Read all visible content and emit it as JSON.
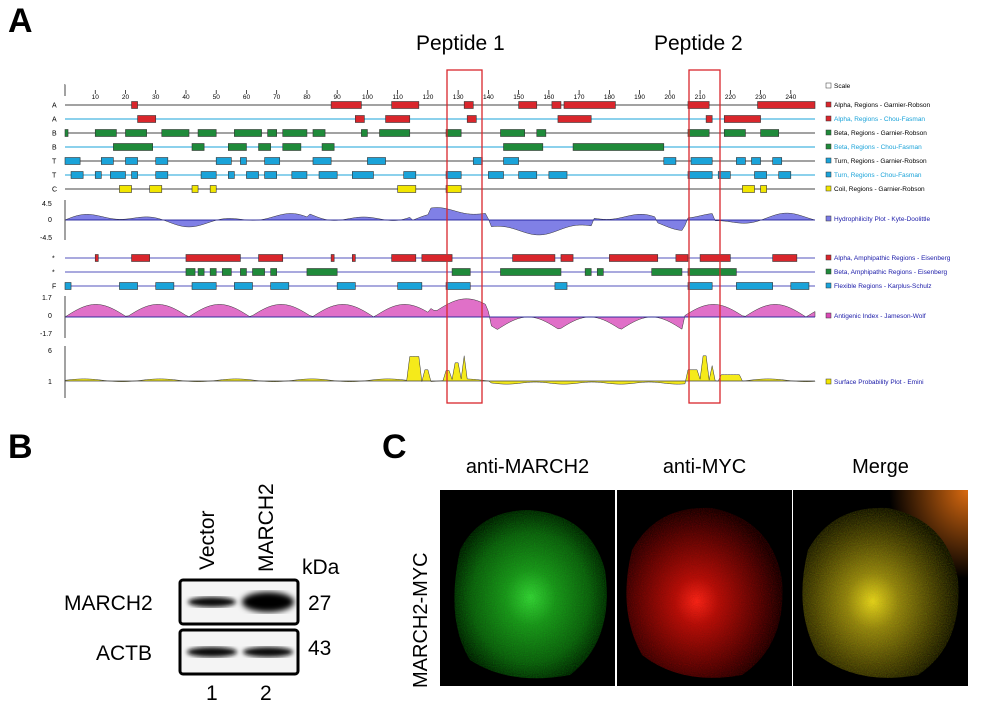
{
  "panels": {
    "a": "A",
    "b": "B",
    "c": "C"
  },
  "peptides": [
    "Peptide 1",
    "Peptide 2"
  ],
  "protean": {
    "scale_ticks": [
      10,
      20,
      30,
      40,
      50,
      60,
      70,
      80,
      90,
      100,
      110,
      120,
      130,
      140,
      150,
      160,
      170,
      180,
      190,
      200,
      210,
      220,
      230,
      240
    ],
    "row_letters": [
      "A",
      "A",
      "B",
      "B",
      "T",
      "T",
      "C"
    ],
    "amph_letters": [
      "*",
      "*",
      "F"
    ],
    "axis_labels": {
      "h_top": "4.5",
      "h_mid": "0",
      "h_bot": "-4.5",
      "a_top": "1.7",
      "a_mid": "0",
      "a_bot": "-1.7",
      "s_top": "6",
      "s_mid": "1"
    },
    "legend": [
      {
        "text": "Scale",
        "color": "#ffffff",
        "text_color": "#000000"
      },
      {
        "text": "Alpha, Regions - Garnier-Robson",
        "color": "#d9262c",
        "text_color": "#000000"
      },
      {
        "text": "Alpha, Regions - Chou-Fasman",
        "color": "#d9262c",
        "text_color": "#1aa3d9"
      },
      {
        "text": "Beta, Regions - Garnier-Robson",
        "color": "#1f8a3a",
        "text_color": "#000000"
      },
      {
        "text": "Beta, Regions - Chou-Fasman",
        "color": "#1f8a3a",
        "text_color": "#1aa3d9"
      },
      {
        "text": "Turn, Regions - Garnier-Robson",
        "color": "#1aa3d9",
        "text_color": "#000000"
      },
      {
        "text": "Turn, Regions - Chou-Fasman",
        "color": "#1aa3d9",
        "text_color": "#1aa3d9"
      },
      {
        "text": "Coil, Regions - Garnier-Robson",
        "color": "#f2e600",
        "text_color": "#000000"
      },
      {
        "text": "Hydrophilicity Plot - Kyte-Doolittle",
        "color": "#7b7be6",
        "text_color": "#1a1aa8"
      },
      {
        "text": "Alpha, Amphipathic Regions - Eisenberg",
        "color": "#d9262c",
        "text_color": "#1a1aa8"
      },
      {
        "text": "Beta, Amphipathic Regions - Eisenberg",
        "color": "#1f8a3a",
        "text_color": "#1a1aa8"
      },
      {
        "text": "Flexible Regions - Karplus-Schulz",
        "color": "#1aa3d9",
        "text_color": "#1a1aa8"
      },
      {
        "text": "Antigenic Index - Jameson-Wolf",
        "color": "#d94ab4",
        "text_color": "#1a1aa8"
      },
      {
        "text": "Surface Probability Plot - Emini",
        "color": "#f2e600",
        "text_color": "#1a1aa8"
      }
    ]
  },
  "blot": {
    "lanes": [
      "Vector",
      "MARCH2"
    ],
    "unit": "kDa",
    "rows": [
      {
        "label": "MARCH2",
        "kda": "27"
      },
      {
        "label": "ACTB",
        "kda": "43"
      }
    ],
    "lane_numbers": [
      "1",
      "2"
    ]
  },
  "microscopy": {
    "titles": [
      "anti-MARCH2",
      "anti-MYC",
      "Merge"
    ],
    "row_label": "MARCH2-MYC"
  }
}
